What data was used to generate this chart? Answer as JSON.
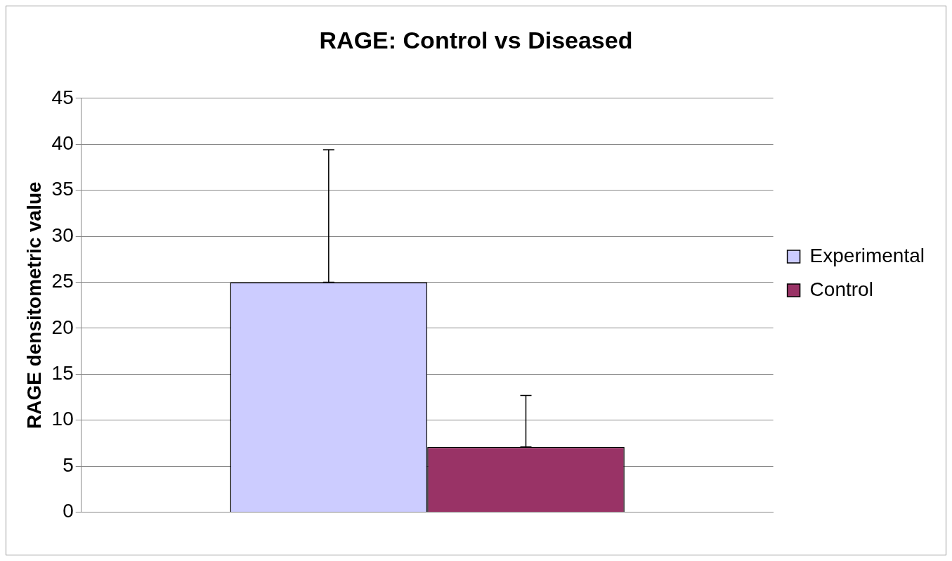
{
  "chart_data": {
    "type": "bar",
    "title": "RAGE: Control vs Diseased",
    "ylabel": "RAGE densitometric value",
    "categories": [
      null
    ],
    "series": [
      {
        "name": "Experimental",
        "color": "#ccccff",
        "values": [
          25
        ],
        "errors": [
          [
            25,
            39.4
          ]
        ]
      },
      {
        "name": "Control",
        "color": "#993366",
        "values": [
          7.1
        ],
        "errors": [
          [
            7.1,
            12.7
          ]
        ]
      }
    ],
    "ylim": [
      0,
      45
    ],
    "yticks": [
      0,
      5,
      10,
      15,
      20,
      25,
      30,
      35,
      40,
      45
    ],
    "grid": "y",
    "legend": "right"
  }
}
